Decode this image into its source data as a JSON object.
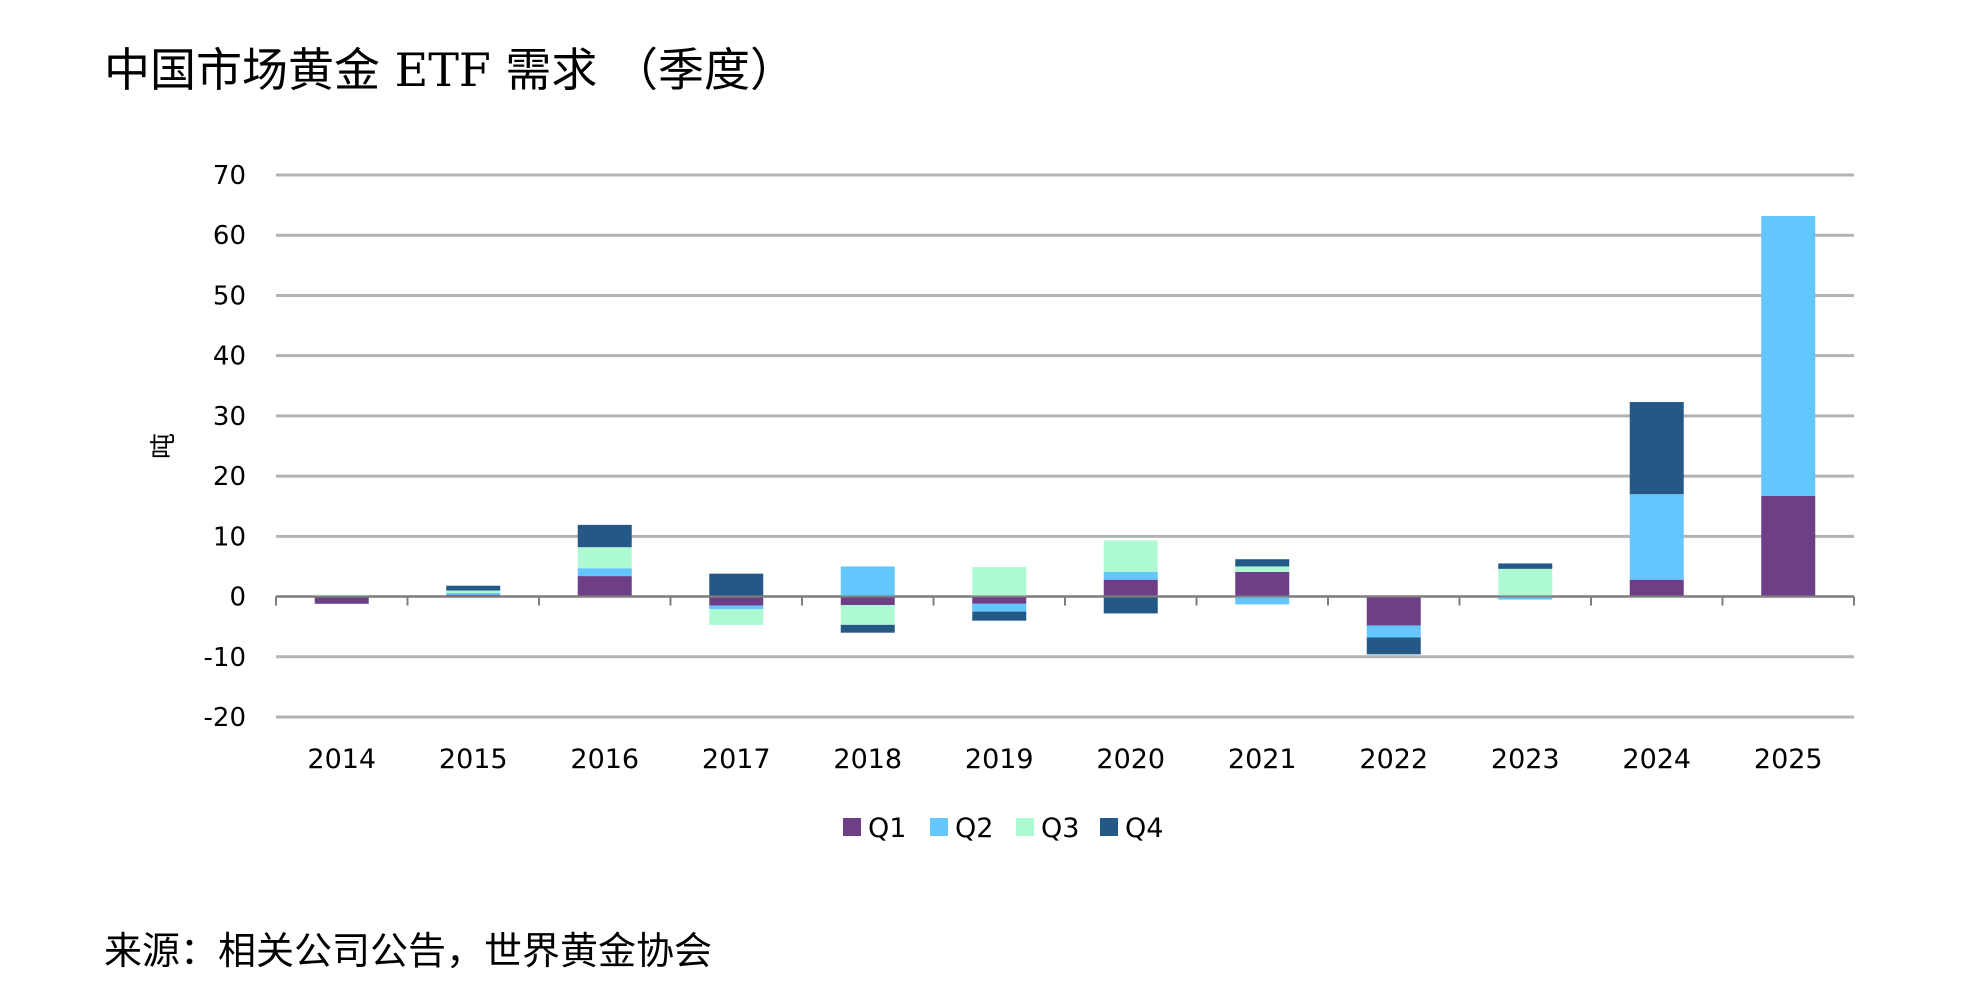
{
  "title": "中国市场黄金  ETF 需求 （季度）",
  "source": "来源：相关公司公告，世界黄金协会",
  "colors": {
    "Q1": "#6e3f87",
    "Q2": "#63c6fc",
    "Q3": "#adfad2",
    "Q4": "#235887",
    "grid": "#b3b3b3",
    "axis": "#808080",
    "text": "#000000"
  },
  "chart_data": {
    "type": "bar",
    "stacked": true,
    "title": "中国市场黄金  ETF 需求 （季度）",
    "xlabel": "",
    "ylabel": "吨",
    "ylim": [
      -20,
      70
    ],
    "yticks": [
      70,
      60,
      50,
      40,
      30,
      20,
      10,
      0,
      -10,
      -20
    ],
    "grid": true,
    "legend": "bottom",
    "categories": [
      "2014",
      "2015",
      "2016",
      "2017",
      "2018",
      "2019",
      "2020",
      "2021",
      "2022",
      "2023",
      "2024",
      "2025"
    ],
    "series": [
      {
        "name": "Q1",
        "values": [
          -1.2,
          0.3,
          3.4,
          -1.5,
          -1.4,
          -1.2,
          2.8,
          4.1,
          -4.8,
          0.2,
          2.8,
          16.7
        ]
      },
      {
        "name": "Q2",
        "values": [
          0,
          0.3,
          1.3,
          -0.6,
          5.0,
          -1.3,
          1.3,
          -1.3,
          -2.0,
          -0.5,
          14.2,
          46.5
        ]
      },
      {
        "name": "Q3",
        "values": [
          0.3,
          0.4,
          3.5,
          -2.6,
          -3.3,
          4.9,
          5.2,
          0.9,
          0.1,
          4.4,
          -0.2,
          0
        ]
      },
      {
        "name": "Q4",
        "values": [
          0,
          0.8,
          3.7,
          3.8,
          -1.3,
          -1.5,
          -2.8,
          1.2,
          -2.8,
          0.9,
          15.3,
          0
        ]
      }
    ]
  }
}
